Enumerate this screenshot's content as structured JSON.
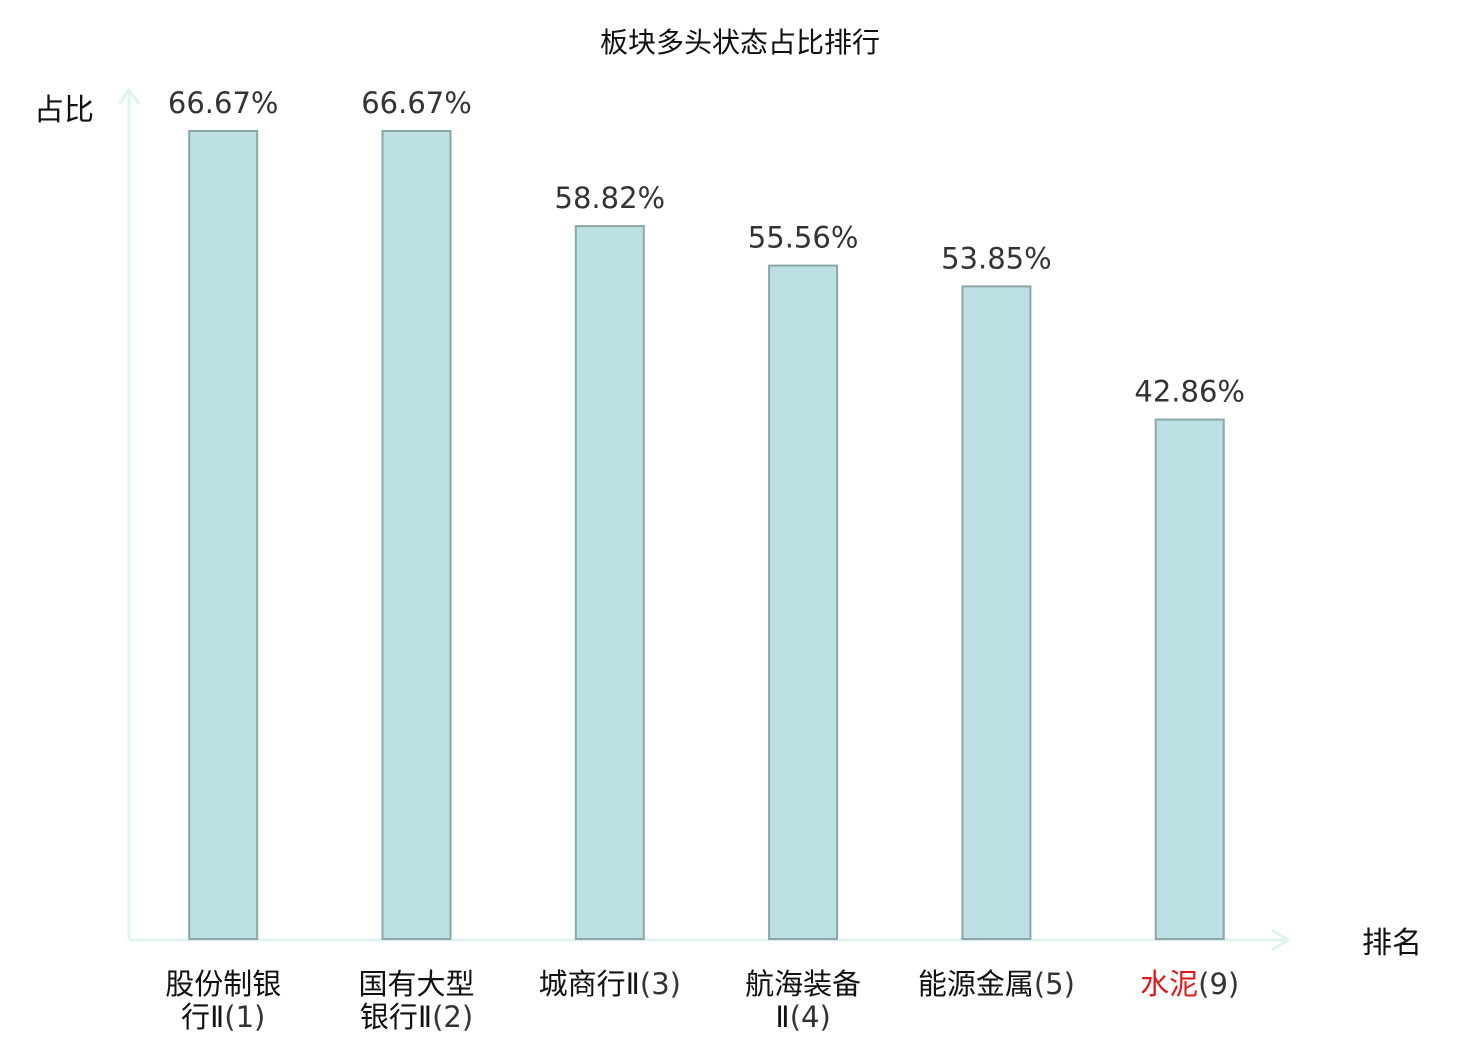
{
  "chart_data": {
    "type": "bar",
    "title": "板块多头状态占比排行",
    "xlabel": "排名",
    "ylabel": "占比",
    "ylim": [
      0,
      70
    ],
    "grid": false,
    "categories": [
      {
        "lines": [
          {
            "text": "股份制银"
          },
          {
            "text": "行Ⅱ",
            "suffix": "(1)"
          }
        ],
        "highlight": false
      },
      {
        "lines": [
          {
            "text": "国有大型"
          },
          {
            "text": "银行Ⅱ",
            "suffix": "(2)"
          }
        ],
        "highlight": false
      },
      {
        "lines": [
          {
            "text": "城商行Ⅱ",
            "suffix": "(3)"
          }
        ],
        "highlight": false
      },
      {
        "lines": [
          {
            "text": "航海装备"
          },
          {
            "text": "Ⅱ",
            "suffix": "(4)"
          }
        ],
        "highlight": false
      },
      {
        "lines": [
          {
            "text": "能源金属",
            "suffix": "(5)"
          }
        ],
        "highlight": false
      },
      {
        "lines": [
          {
            "text": "水泥",
            "suffix": "(9)"
          }
        ],
        "highlight": true
      }
    ],
    "values": [
      66.67,
      66.67,
      58.82,
      55.56,
      53.85,
      42.86
    ],
    "value_labels": [
      "66.67%",
      "66.67%",
      "58.82%",
      "55.56%",
      "53.85%",
      "42.86%"
    ],
    "colors": {
      "bar_fill": "#bce0e3",
      "bar_stroke": "#8ba6a8",
      "axis": "#e0f3f1",
      "highlight_text": "#e01818",
      "label_text": "#111111",
      "value_text": "#333333"
    }
  }
}
